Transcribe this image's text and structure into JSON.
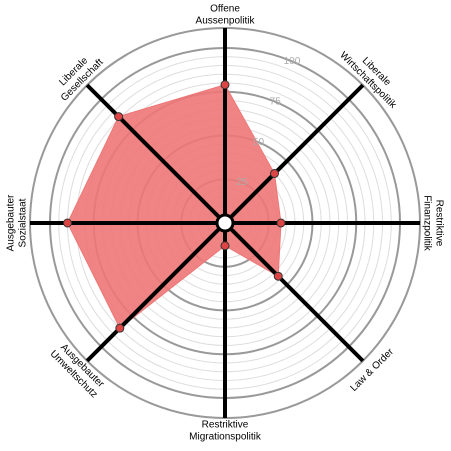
{
  "chart_data": {
    "type": "radar",
    "categories": [
      [
        "Offene",
        "Aussenpolitik"
      ],
      [
        "Liberale",
        "Wirtschaftspolitik"
      ],
      [
        "Restriktive",
        "Finanzpolitik"
      ],
      [
        "Law & Order"
      ],
      [
        "Restriktive",
        "Migrationspolitik"
      ],
      [
        "Ausgebauter",
        "Umweltschutz"
      ],
      [
        "Ausgebauter",
        "Sozialstaat"
      ],
      [
        "Liberale",
        "Gesellschaft"
      ]
    ],
    "values": [
      79,
      40,
      32,
      43,
      13,
      85,
      90,
      86
    ],
    "color": "#ee7777",
    "rlim": [
      0,
      100
    ],
    "rticks": [
      25,
      50,
      75,
      100
    ],
    "minor_ticks": [
      5,
      10,
      15,
      20,
      30,
      35,
      40,
      45,
      55,
      60,
      65,
      70,
      80,
      85,
      90,
      95
    ],
    "grid": true
  }
}
